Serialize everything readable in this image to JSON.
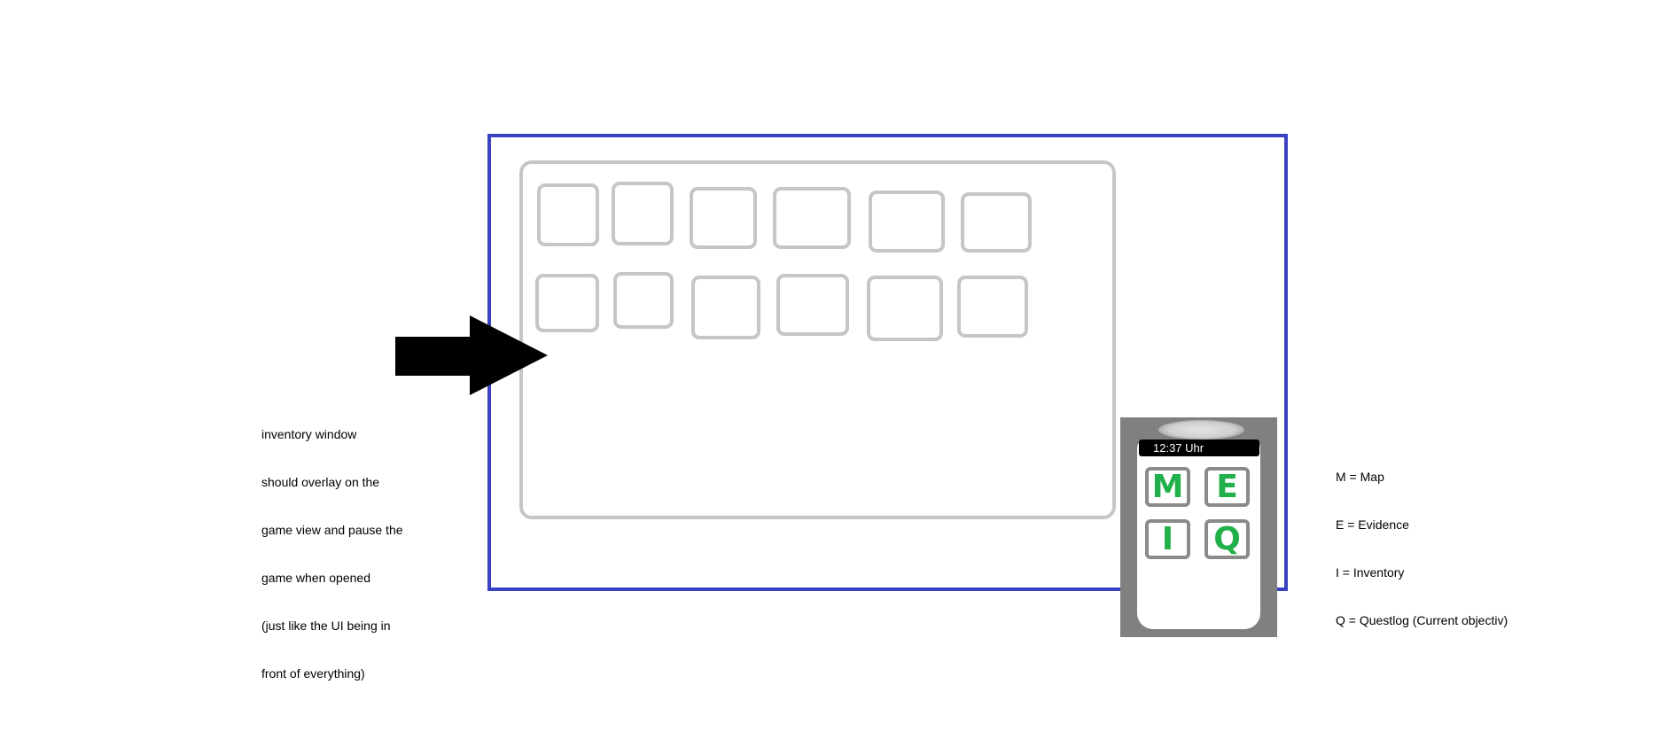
{
  "inventory_note": {
    "lines": [
      "inventory window",
      "should overlay on the",
      "game view and pause the",
      "game when opened",
      "(just like the UI being in",
      "front of everything)"
    ]
  },
  "phone": {
    "clock": "12:37 Uhr",
    "buttons": [
      {
        "key": "M"
      },
      {
        "key": "E"
      },
      {
        "key": "I"
      },
      {
        "key": "Q"
      }
    ]
  },
  "legend": {
    "lines": [
      "M = Map",
      "E = Evidence",
      "I = Inventory",
      "Q = Questlog (Current objectiv)"
    ]
  },
  "colors": {
    "game_view_border": "#3a42c2",
    "inventory_border": "#c6c6c6",
    "hud_letter": "#22b04a",
    "phone_body": "#808080"
  }
}
